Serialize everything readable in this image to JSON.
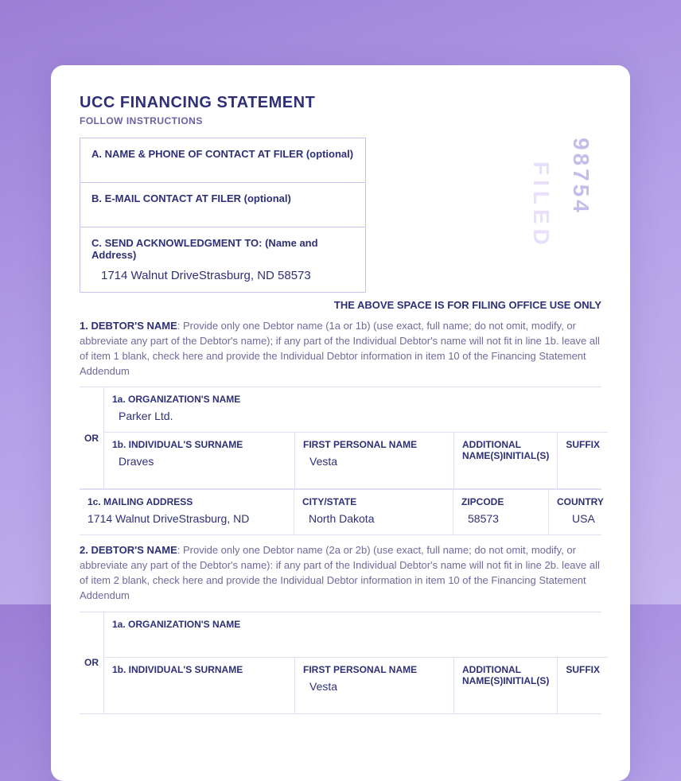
{
  "doc": {
    "title": "UCC FINANCING STATEMENT",
    "subtitle": "FOLLOW INSTRUCTIONS",
    "filing_note": "THE ABOVE SPACE IS FOR FILING OFFICE USE ONLY",
    "stamp_filed": "FILED",
    "stamp_number": "98754"
  },
  "boxes": {
    "a_label": "A. NAME & PHONE OF CONTACT AT FILER (optional)",
    "b_label": "B. E-MAIL CONTACT AT FILER (optional)",
    "c_label": "C. SEND ACKNOWLEDGMENT TO: (Name and Address)",
    "c_address": "1714 Walnut DriveStrasburg, ND 58573"
  },
  "debtor1": {
    "lead": "1. DEBTOR'S NAME",
    "body": ": Provide only one Debtor name (1a or 1b) (use exact, full name; do not omit, modify, or abbreviate any part of the Debtor's name); if any part of the Individual Debtor's name will not fit in line 1b. leave all of item 1 blank, check here and provide the Individual Debtor information in item 10 of the Financing Statement Addendum",
    "or": "OR",
    "org_label": "1a. ORGANIZATION'S NAME",
    "org_name": "Parker Ltd.",
    "surname_label": "1b. INDIVIDUAL'S SURNAME",
    "surname": "Draves",
    "first_label": "FIRST PERSONAL NAME",
    "first": "Vesta",
    "addl_label": "ADDITIONAL NAME(S)INITIAL(S)",
    "addl": "",
    "suffix_label": "SUFFIX",
    "suffix": "",
    "mail_label": "1c. MAILING ADDRESS",
    "mail": "1714 Walnut DriveStrasburg, ND",
    "city_label": "CITY/STATE",
    "city": "North Dakota",
    "zip_label": "ZIPCODE",
    "zip": "58573",
    "country_label": "COUNTRY",
    "country": "USA"
  },
  "debtor2": {
    "lead": "2. DEBTOR'S NAME",
    "body": ": Provide only one Debtor name (2a or 2b) (use exact, full name; do not omit, modify, or abbreviate any part of the Debtor's name): if any part of the Individual Debtor's name will not fit in line 2b. leave all of item 2 blank, check here and provide the Individual Debtor information in item 10 of the Financing Statement Addendum",
    "or": "OR",
    "org_label": "1a. ORGANIZATION'S NAME",
    "org_name": "",
    "surname_label": "1b. INDIVIDUAL'S SURNAME",
    "surname": "",
    "first_label": "FIRST PERSONAL NAME",
    "first": "Vesta",
    "addl_label": "ADDITIONAL NAME(S)INITIAL(S)",
    "addl": "",
    "suffix_label": "SUFFIX",
    "suffix": ""
  }
}
